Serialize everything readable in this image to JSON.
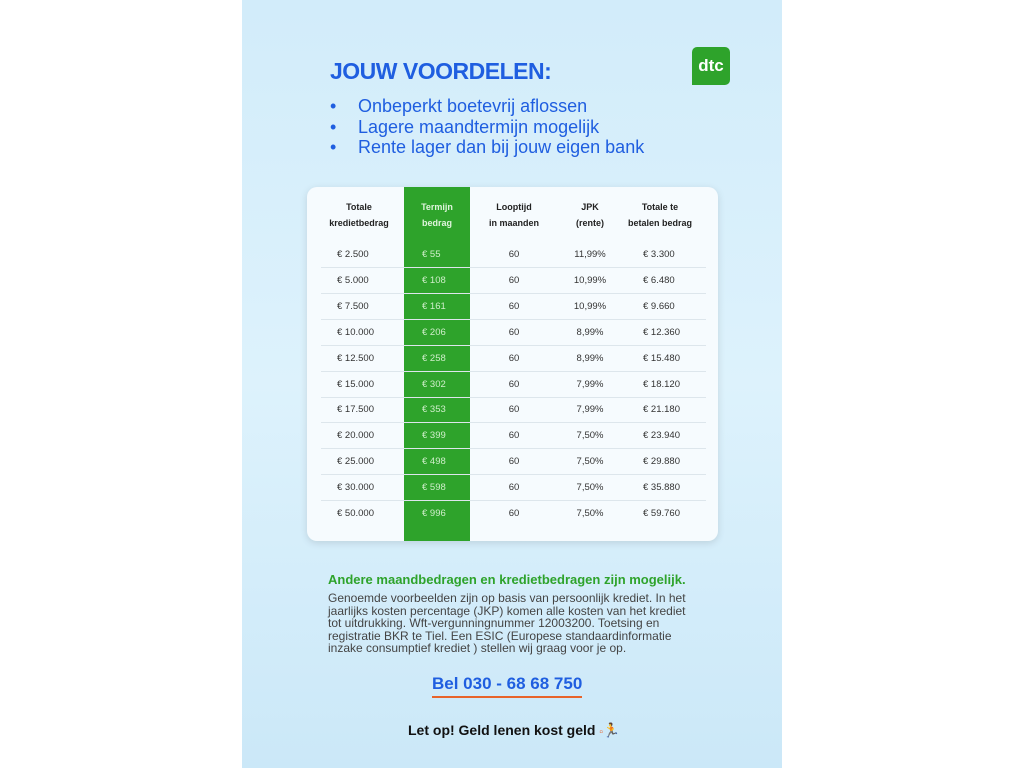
{
  "title": "JOUW VOORDELEN:",
  "logo": "dtc",
  "bullets": [
    "Onbeperkt boetevrij aflossen",
    "Lagere maandtermijn mogelijk",
    "Rente lager dan bij jouw eigen bank"
  ],
  "table": {
    "headers": [
      [
        "Totale",
        "kredietbedrag"
      ],
      [
        "Termijn",
        "bedrag"
      ],
      [
        "Looptijd",
        "in maanden"
      ],
      [
        "JPK",
        "(rente)"
      ],
      [
        "Totale te",
        "betalen bedrag"
      ]
    ],
    "rows": [
      [
        "€ 2.500",
        "€ 55",
        "60",
        "11,99%",
        "€ 3.300"
      ],
      [
        "€ 5.000",
        "€ 108",
        "60",
        "10,99%",
        "€ 6.480"
      ],
      [
        "€ 7.500",
        "€ 161",
        "60",
        "10,99%",
        "€ 9.660"
      ],
      [
        "€ 10.000",
        "€ 206",
        "60",
        "8,99%",
        "€ 12.360"
      ],
      [
        "€ 12.500",
        "€ 258",
        "60",
        "8,99%",
        "€ 15.480"
      ],
      [
        "€ 15.000",
        "€ 302",
        "60",
        "7,99%",
        "€ 18.120"
      ],
      [
        "€ 17.500",
        "€ 353",
        "60",
        "7,99%",
        "€ 21.180"
      ],
      [
        "€ 20.000",
        "€ 399",
        "60",
        "7,50%",
        "€ 23.940"
      ],
      [
        "€ 25.000",
        "€ 498",
        "60",
        "7,50%",
        "€ 29.880"
      ],
      [
        "€ 30.000",
        "€ 598",
        "60",
        "7,50%",
        "€ 35.880"
      ],
      [
        "€ 50.000",
        "€ 996",
        "60",
        "7,50%",
        "€ 59.760"
      ]
    ]
  },
  "subheading": "Andere maandbedragen en kredietbedragen zijn mogelijk.",
  "disclaimer": "Genoemde voorbeelden zijn op basis van persoonlijk krediet. In het jaarlijks kosten percentage (JKP) komen alle kosten van het krediet tot uitdrukking. Wft-vergunningnummer 12003200. Toetsing en registratie BKR te Tiel. Een ESIC (Europese standaardinformatie inzake consumptief krediet ) stellen wij graag voor je op.",
  "phone": "Bel 030 - 68 68 750",
  "warning": "Let op! Geld lenen kost geld",
  "colors": {
    "blue": "#1f5ee0",
    "green": "#2ea32b",
    "orange": "#e8642a"
  }
}
